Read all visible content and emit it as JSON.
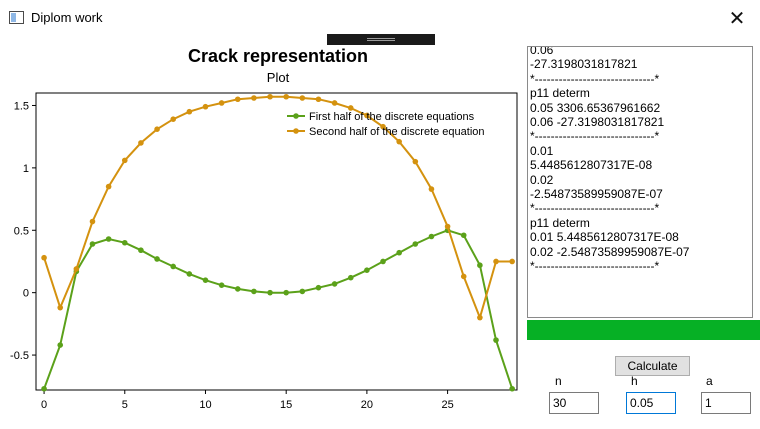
{
  "window": {
    "title": "Diplom work",
    "close_glyph": "✕",
    "icon": "app-window-icon"
  },
  "chart_data": {
    "type": "line",
    "title": "Crack representation",
    "subtitle": "Plot",
    "xlabel": "",
    "ylabel": "",
    "xlim": [
      -0.5,
      29.3
    ],
    "ylim": [
      -0.78,
      1.6
    ],
    "xticks": [
      0,
      5,
      10,
      15,
      20,
      25
    ],
    "yticks": [
      -0.5,
      0,
      0.5,
      1,
      1.5
    ],
    "ytick_labels": [
      "-0.5",
      "0",
      "0.5",
      "1",
      "1.5"
    ],
    "grid": false,
    "legend": "top-right",
    "series": [
      {
        "name": "First half of the discrete equations",
        "color": "#5ba11a",
        "x": [
          0,
          1,
          2,
          3,
          4,
          5,
          6,
          7,
          8,
          9,
          10,
          11,
          12,
          13,
          14,
          15,
          16,
          17,
          18,
          19,
          20,
          21,
          22,
          23,
          24,
          25,
          26,
          27,
          28,
          29
        ],
        "values": [
          -0.77,
          -0.42,
          0.17,
          0.39,
          0.43,
          0.4,
          0.34,
          0.27,
          0.21,
          0.15,
          0.1,
          0.06,
          0.03,
          0.01,
          0.0,
          0.0,
          0.01,
          0.04,
          0.07,
          0.12,
          0.18,
          0.25,
          0.32,
          0.39,
          0.45,
          0.5,
          0.46,
          0.22,
          -0.38,
          -0.77
        ]
      },
      {
        "name": "Second half of the discrete equation",
        "color": "#d4920f",
        "x": [
          0,
          1,
          2,
          3,
          4,
          5,
          6,
          7,
          8,
          9,
          10,
          11,
          12,
          13,
          14,
          15,
          16,
          17,
          18,
          19,
          20,
          21,
          22,
          23,
          24,
          25,
          26,
          27,
          28,
          29
        ],
        "values": [
          0.28,
          -0.12,
          0.19,
          0.57,
          0.85,
          1.06,
          1.2,
          1.31,
          1.39,
          1.45,
          1.49,
          1.52,
          1.55,
          1.56,
          1.57,
          1.57,
          1.56,
          1.55,
          1.52,
          1.48,
          1.42,
          1.33,
          1.21,
          1.05,
          0.83,
          0.53,
          0.13,
          -0.2,
          0.25,
          0.25
        ]
      }
    ]
  },
  "log": {
    "lines": [
      "0.06",
      "-27.3198031817821",
      "*------------------------------*",
      "p11 determ",
      "0.05 3306.65367961662",
      "0.06 -27.3198031817821",
      "*------------------------------*",
      "0.01",
      "5.4485612807317E-08",
      "0.02",
      "-2.54873589959087E-07",
      "*------------------------------*",
      "p11 determ",
      "0.01 5.4485612807317E-08",
      "0.02 -2.54873589959087E-07",
      "*------------------------------*"
    ]
  },
  "progress": {
    "value": 1.0,
    "color": "#06b025"
  },
  "controls": {
    "calculate_label": "Calculate",
    "n_label": "n",
    "h_label": "h",
    "a_label": "a",
    "n_value": "30",
    "h_value": "0.05",
    "a_value": "1"
  }
}
